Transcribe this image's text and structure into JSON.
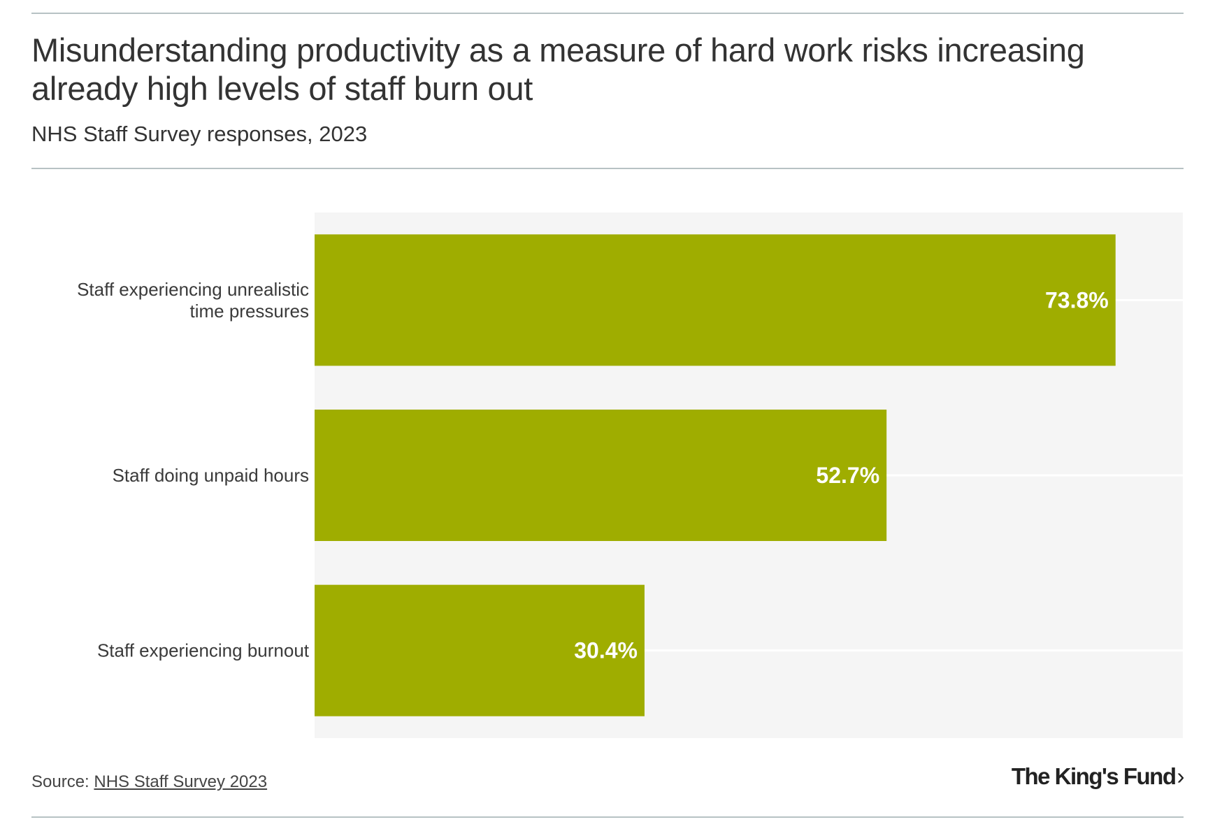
{
  "header": {
    "title": "Misunderstanding productivity as a measure of hard work risks increasing already high levels of staff burn out",
    "subtitle": "NHS Staff Survey responses, 2023"
  },
  "footer": {
    "source_prefix": "Source: ",
    "source_link": "NHS Staff Survey 2023",
    "logo_text": "The King's Fund",
    "logo_chevron": "›"
  },
  "colors": {
    "bar": "#9fad00",
    "plot_background": "#f5f5f5",
    "gridline": "#ffffff",
    "text": "#333333"
  },
  "chart_data": {
    "type": "bar",
    "orientation": "horizontal",
    "title": "Misunderstanding productivity as a measure of hard work risks increasing already high levels of staff burn out",
    "subtitle": "NHS Staff Survey responses, 2023",
    "categories": [
      [
        "Staff experiencing unrealistic",
        "time pressures"
      ],
      [
        "Staff doing unpaid hours"
      ],
      [
        "Staff experiencing burnout"
      ]
    ],
    "values": [
      73.8,
      52.7,
      30.4
    ],
    "value_labels": [
      "73.8%",
      "52.7%",
      "30.4%"
    ],
    "unit": "%",
    "xlim": [
      0,
      80
    ],
    "grid": true,
    "xlabel": "",
    "ylabel": ""
  }
}
